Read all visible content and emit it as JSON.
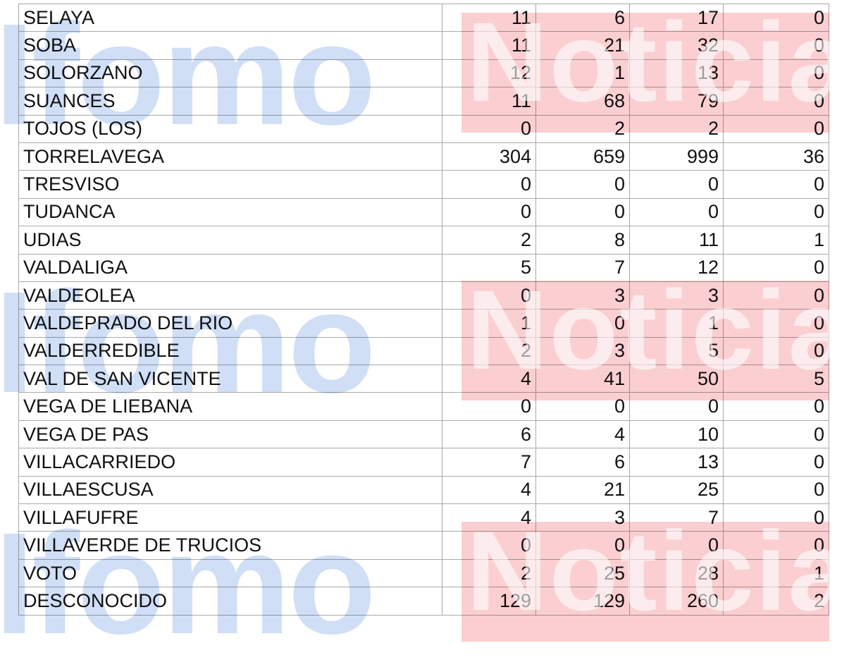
{
  "table": {
    "rows": [
      [
        "SELAYA",
        "11",
        "6",
        "17",
        "0"
      ],
      [
        "SOBA",
        "11",
        "21",
        "32",
        "0"
      ],
      [
        "SOLORZANO",
        "12",
        "1",
        "13",
        "0"
      ],
      [
        "SUANCES",
        "11",
        "68",
        "79",
        "0"
      ],
      [
        "TOJOS (LOS)",
        "0",
        "2",
        "2",
        "0"
      ],
      [
        "TORRELAVEGA",
        "304",
        "659",
        "999",
        "36"
      ],
      [
        "TRESVISO",
        "0",
        "0",
        "0",
        "0"
      ],
      [
        "TUDANCA",
        "0",
        "0",
        "0",
        "0"
      ],
      [
        "UDIAS",
        "2",
        "8",
        "11",
        "1"
      ],
      [
        "VALDALIGA",
        "5",
        "7",
        "12",
        "0"
      ],
      [
        "VALDEOLEA",
        "0",
        "3",
        "3",
        "0"
      ],
      [
        "VALDEPRADO DEL RIO",
        "1",
        "0",
        "1",
        "0"
      ],
      [
        "VALDERREDIBLE",
        "2",
        "3",
        "5",
        "0"
      ],
      [
        "VAL DE SAN VICENTE",
        "4",
        "41",
        "50",
        "5"
      ],
      [
        "VEGA DE LIEBANA",
        "0",
        "0",
        "0",
        "0"
      ],
      [
        "VEGA DE PAS",
        "6",
        "4",
        "10",
        "0"
      ],
      [
        "VILLACARRIEDO",
        "7",
        "6",
        "13",
        "0"
      ],
      [
        "VILLAESCUSA",
        "4",
        "21",
        "25",
        "0"
      ],
      [
        "VILLAFUFRE",
        "4",
        "3",
        "7",
        "0"
      ],
      [
        "VILLAVERDE DE TRUCIOS",
        "0",
        "0",
        "0",
        "0"
      ],
      [
        "VOTO",
        "2",
        "25",
        "28",
        "1"
      ],
      [
        "DESCONOCIDO",
        "129",
        "129",
        "260",
        "2"
      ]
    ]
  },
  "watermark": {
    "left_text": "Ifomo",
    "right_text": "Noticias",
    "blue": "#c9dcf5",
    "pink": "#f9c8ca"
  }
}
